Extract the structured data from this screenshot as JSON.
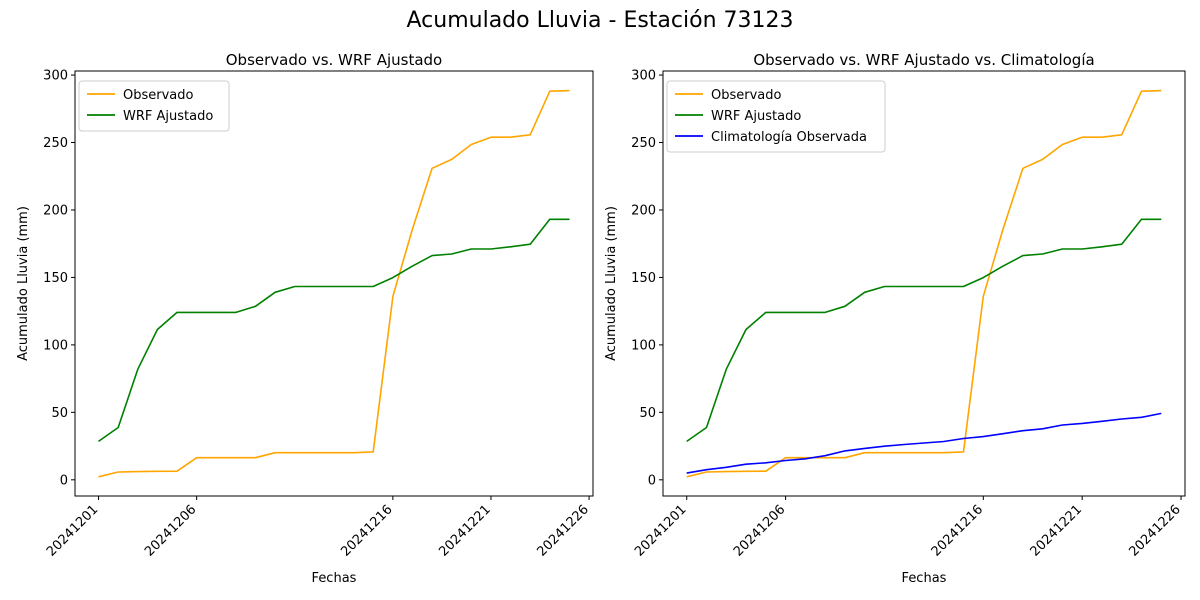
{
  "suptitle": "Acumulado Lluvia - Estación 73123",
  "chart_data": [
    {
      "type": "line",
      "title": "Observado vs. WRF Ajustado",
      "xlabel": "Fechas",
      "ylabel": "Acumulado Lluvia (mm)",
      "x": [
        "20241201",
        "20241202",
        "20241203",
        "20241204",
        "20241205",
        "20241206",
        "20241207",
        "20241208",
        "20241209",
        "20241210",
        "20241211",
        "20241212",
        "20241213",
        "20241214",
        "20241215",
        "20241216",
        "20241217",
        "20241218",
        "20241219",
        "20241220",
        "20241221",
        "20241222",
        "20241223",
        "20241224",
        "20241225"
      ],
      "xticks": [
        "20241201",
        "20241206",
        "20241216",
        "20241221",
        "20241226"
      ],
      "yticks": [
        0,
        50,
        100,
        150,
        200,
        250,
        300
      ],
      "ylim": [
        -12,
        303
      ],
      "legend_position": "upper-left",
      "grid": false,
      "series": [
        {
          "name": "Observado",
          "color": "#FFA500",
          "values": [
            2.2,
            5.8,
            6.1,
            6.3,
            6.4,
            16.4,
            16.4,
            16.4,
            16.4,
            20.1,
            20.1,
            20.1,
            20.1,
            20.1,
            20.7,
            136,
            186,
            230.9,
            237.5,
            248.5,
            253.9,
            253.9,
            255.7,
            288,
            288.5
          ]
        },
        {
          "name": "WRF Ajustado",
          "color": "#008000",
          "values": [
            28.5,
            38.8,
            82,
            111.4,
            124.1,
            124.1,
            124.1,
            124.1,
            128.6,
            139,
            143.3,
            143.3,
            143.3,
            143.3,
            143.3,
            149.9,
            158.4,
            166.2,
            167.4,
            171.1,
            171.1,
            172.7,
            174.6,
            193.1,
            193.1
          ]
        }
      ]
    },
    {
      "type": "line",
      "title": "Observado vs. WRF Ajustado vs. Climatología",
      "xlabel": "Fechas",
      "ylabel": "Acumulado Lluvia (mm)",
      "x": [
        "20241201",
        "20241202",
        "20241203",
        "20241204",
        "20241205",
        "20241206",
        "20241207",
        "20241208",
        "20241209",
        "20241210",
        "20241211",
        "20241212",
        "20241213",
        "20241214",
        "20241215",
        "20241216",
        "20241217",
        "20241218",
        "20241219",
        "20241220",
        "20241221",
        "20241222",
        "20241223",
        "20241224",
        "20241225"
      ],
      "xticks": [
        "20241201",
        "20241206",
        "20241216",
        "20241221",
        "20241226"
      ],
      "yticks": [
        0,
        50,
        100,
        150,
        200,
        250,
        300
      ],
      "ylim": [
        -12,
        303
      ],
      "legend_position": "upper-left",
      "grid": false,
      "series": [
        {
          "name": "Observado",
          "color": "#FFA500",
          "values": [
            2.2,
            5.8,
            6.1,
            6.3,
            6.4,
            16.4,
            16.4,
            16.4,
            16.4,
            20.1,
            20.1,
            20.1,
            20.1,
            20.1,
            20.7,
            136,
            186,
            230.9,
            237.5,
            248.5,
            253.9,
            253.9,
            255.7,
            288,
            288.5
          ]
        },
        {
          "name": "WRF Ajustado",
          "color": "#008000",
          "values": [
            28.5,
            38.8,
            82,
            111.4,
            124.1,
            124.1,
            124.1,
            124.1,
            128.6,
            139,
            143.3,
            143.3,
            143.3,
            143.3,
            143.3,
            149.9,
            158.4,
            166.2,
            167.4,
            171.1,
            171.1,
            172.7,
            174.6,
            193.1,
            193.1
          ]
        },
        {
          "name": "Climatología Observada",
          "color": "#0000FF",
          "values": [
            5,
            7.5,
            9.3,
            11.6,
            12.6,
            14.3,
            15.6,
            17.9,
            21.4,
            23.3,
            24.9,
            26.2,
            27.3,
            28.4,
            30.6,
            32,
            34.2,
            36.4,
            37.8,
            40.6,
            41.8,
            43.4,
            45.1,
            46.3,
            49.2
          ]
        }
      ]
    }
  ]
}
